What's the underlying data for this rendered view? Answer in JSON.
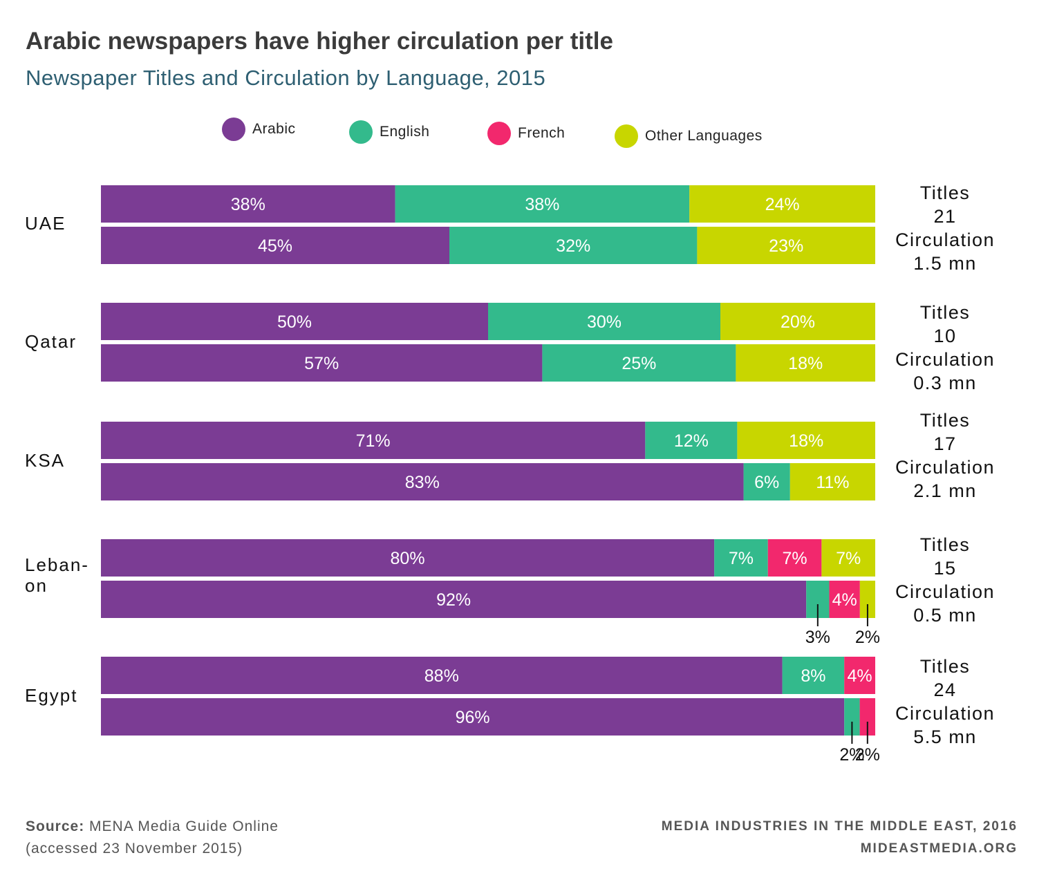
{
  "title": "Arabic newspapers have higher circulation per title",
  "subtitle": "Newspaper Titles and Circulation by Language, 2015",
  "legend": [
    {
      "label": "Arabic",
      "color": "#7b3c94"
    },
    {
      "label": "English",
      "color": "#33ba8c"
    },
    {
      "label": "French",
      "color": "#f2286d"
    },
    {
      "label": "Other Languages",
      "color": "#c8d600"
    }
  ],
  "chart_data": {
    "type": "bar",
    "orientation": "horizontal",
    "stacked": "100%",
    "series_names": [
      "Arabic",
      "English",
      "French",
      "Other Languages"
    ],
    "groups": [
      {
        "country": "UAE",
        "titles_label": "Titles",
        "titles_value": "21",
        "circulation_label": "Circulation",
        "circulation_value": "1.5 mn",
        "bars": [
          {
            "measure": "Titles",
            "values": [
              38,
              38,
              0,
              24
            ],
            "labels": [
              "38%",
              "38%",
              "",
              "24%"
            ]
          },
          {
            "measure": "Circulation",
            "values": [
              45,
              32,
              0,
              23
            ],
            "labels": [
              "45%",
              "32%",
              "",
              "23%"
            ]
          }
        ]
      },
      {
        "country": "Qatar",
        "titles_label": "Titles",
        "titles_value": "10",
        "circulation_label": "Circulation",
        "circulation_value": "0.3 mn",
        "bars": [
          {
            "measure": "Titles",
            "values": [
              50,
              30,
              0,
              20
            ],
            "labels": [
              "50%",
              "30%",
              "",
              "20%"
            ]
          },
          {
            "measure": "Circulation",
            "values": [
              57,
              25,
              0,
              18
            ],
            "labels": [
              "57%",
              "25%",
              "",
              "18%"
            ]
          }
        ]
      },
      {
        "country": "KSA",
        "titles_label": "Titles",
        "titles_value": "17",
        "circulation_label": "Circulation",
        "circulation_value": "2.1 mn",
        "bars": [
          {
            "measure": "Titles",
            "values": [
              71,
              12,
              0,
              18
            ],
            "labels": [
              "71%",
              "12%",
              "",
              "18%"
            ]
          },
          {
            "measure": "Circulation",
            "values": [
              83,
              6,
              0,
              11
            ],
            "labels": [
              "83%",
              "6%",
              "",
              "11%"
            ]
          }
        ]
      },
      {
        "country": "Leban-\non",
        "titles_label": "Titles",
        "titles_value": "15",
        "circulation_label": "Circulation",
        "circulation_value": "0.5 mn",
        "bars": [
          {
            "measure": "Titles",
            "values": [
              80,
              7,
              7,
              7
            ],
            "labels": [
              "80%",
              "7%",
              "7%",
              "7%"
            ]
          },
          {
            "measure": "Circulation",
            "values": [
              92,
              3,
              4,
              2
            ],
            "labels": [
              "92%",
              "3%",
              "4%",
              "2%"
            ],
            "callouts": [
              1,
              3
            ]
          }
        ]
      },
      {
        "country": "Egypt",
        "titles_label": "Titles",
        "titles_value": "24",
        "circulation_label": "Circulation",
        "circulation_value": "5.5 mn",
        "bars": [
          {
            "measure": "Titles",
            "values": [
              88,
              8,
              4,
              0
            ],
            "labels": [
              "88%",
              "8%",
              "4%",
              ""
            ]
          },
          {
            "measure": "Circulation",
            "values": [
              96,
              2,
              2,
              0
            ],
            "labels": [
              "96%",
              "2%",
              "2%",
              ""
            ],
            "callouts": [
              1,
              2
            ]
          }
        ]
      }
    ]
  },
  "footer": {
    "source_label": "Source:",
    "source_text": "MENA Media Guide Online",
    "accessed": "(accessed 23 November 2015)",
    "publication": "MEDIA INDUSTRIES IN THE MIDDLE EAST, 2016",
    "website": "MIDEASTMEDIA.ORG"
  }
}
